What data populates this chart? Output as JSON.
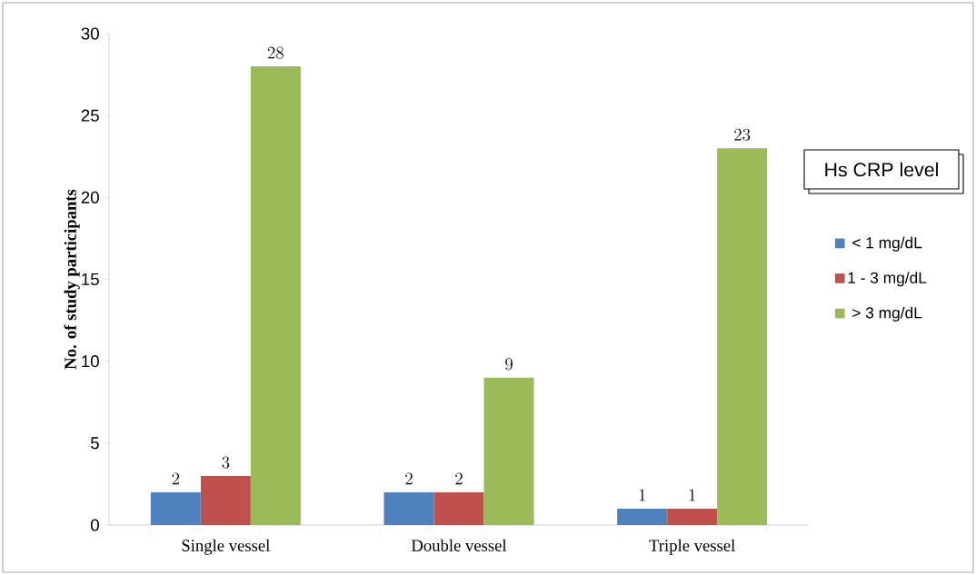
{
  "chart_data": {
    "type": "bar",
    "ylabel": "No. of study participants",
    "legend_title": "Hs CRP level",
    "categories": [
      "Single vessel",
      "Double vessel",
      "Triple vessel"
    ],
    "series": [
      {
        "name": "< 1 mg/dL",
        "color": "#4f81bd",
        "values": [
          2,
          2,
          1
        ]
      },
      {
        "name": "1 - 3 mg/dL",
        "color": "#c0504d",
        "values": [
          3,
          2,
          1
        ]
      },
      {
        "name": "> 3 mg/dL",
        "color": "#9bbb59",
        "values": [
          28,
          9,
          23
        ]
      }
    ],
    "ylim": [
      0,
      30
    ],
    "yticks": [
      0,
      5,
      10,
      15,
      20,
      25,
      30
    ],
    "data_labels": true,
    "legend": "right"
  }
}
